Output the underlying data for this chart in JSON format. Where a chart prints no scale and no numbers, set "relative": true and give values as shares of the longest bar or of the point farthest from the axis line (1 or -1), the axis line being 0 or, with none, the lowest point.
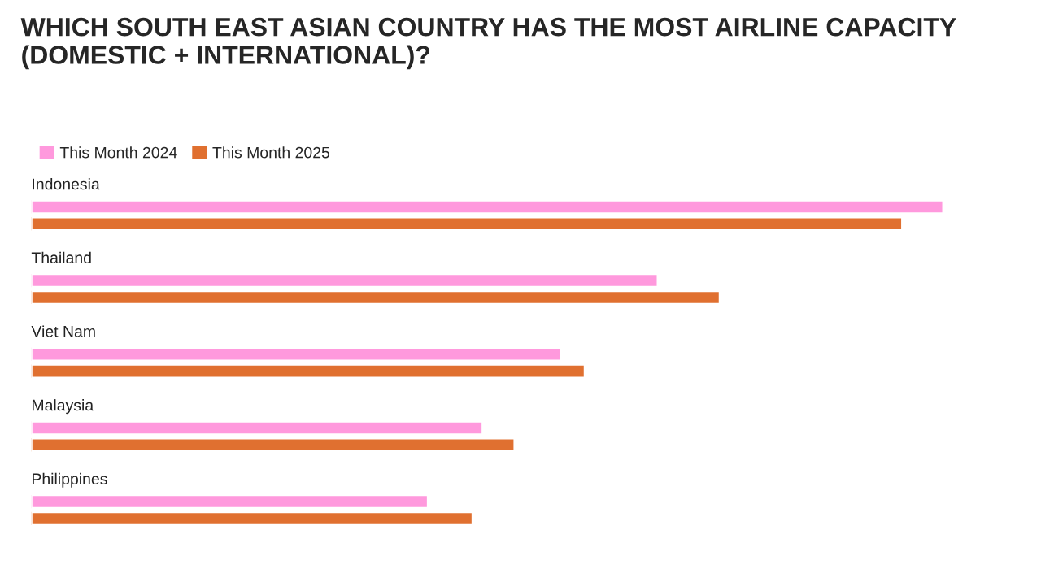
{
  "chart_data": {
    "type": "bar",
    "orientation": "horizontal",
    "relative": true,
    "title": "WHICH SOUTH EAST ASIAN COUNTRY HAS THE MOST AIRLINE CAPACITY (DOMESTIC + INTERNATIONAL)?",
    "categories": [
      "Indonesia",
      "Thailand",
      "Viet Nam",
      "Malaysia",
      "Philippines"
    ],
    "series": [
      {
        "name": "This Month 2024",
        "color": "#ff99dd",
        "values": [
          1,
          0.687,
          0.581,
          0.495,
          0.435
        ]
      },
      {
        "name": "This Month 2025",
        "color": "#e07030",
        "values": [
          0.955,
          0.755,
          0.607,
          0.53,
          0.484
        ]
      }
    ],
    "legend": "top left"
  }
}
